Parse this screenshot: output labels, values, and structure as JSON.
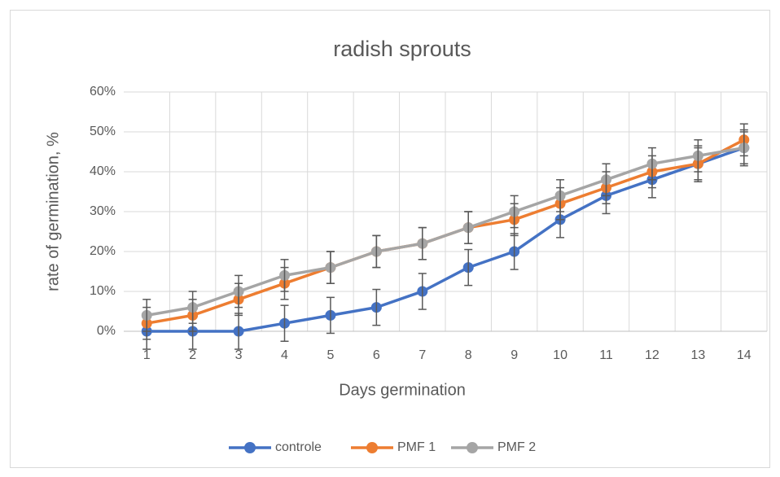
{
  "chart_data": {
    "type": "line",
    "title": "radish sprouts",
    "x_label": "Days germination",
    "y_label": "rate of germination, %",
    "categories": [
      "1",
      "2",
      "3",
      "4",
      "5",
      "6",
      "7",
      "8",
      "9",
      "10",
      "11",
      "12",
      "13",
      "14"
    ],
    "series": [
      {
        "name": "controle",
        "color": "#4472c4",
        "values": [
          0,
          0,
          0,
          2,
          4,
          6,
          10,
          16,
          20,
          28,
          34,
          38,
          42,
          46
        ],
        "errors": [
          4.5,
          4.5,
          4.5,
          4.5,
          4.5,
          4.5,
          4.5,
          4.5,
          4.5,
          4.5,
          4.5,
          4.5,
          4.5,
          4.5
        ]
      },
      {
        "name": "PMF 1",
        "color": "#ed7d31",
        "values": [
          2,
          4,
          8,
          12,
          16,
          20,
          22,
          26,
          28,
          32,
          36,
          40,
          42,
          48
        ],
        "errors": [
          4,
          4,
          4,
          4,
          4,
          4,
          4,
          4,
          4,
          4,
          4,
          4,
          4,
          4
        ]
      },
      {
        "name": "PMF 2",
        "color": "#a5a5a5",
        "values": [
          4,
          6,
          10,
          14,
          16,
          20,
          22,
          26,
          30,
          34,
          38,
          42,
          44,
          46
        ],
        "errors": [
          4,
          4,
          4,
          4,
          4,
          4,
          4,
          4,
          4,
          4,
          4,
          4,
          4,
          4
        ]
      }
    ],
    "ylim": [
      0,
      60
    ],
    "yticks": [
      {
        "value": 0,
        "label": "0%"
      },
      {
        "value": 10,
        "label": "10%"
      },
      {
        "value": 20,
        "label": "20%"
      },
      {
        "value": 30,
        "label": "30%"
      },
      {
        "value": 40,
        "label": "40%"
      },
      {
        "value": 50,
        "label": "50%"
      },
      {
        "value": 60,
        "label": "60%"
      }
    ],
    "grid": true,
    "legend": "bottom"
  }
}
